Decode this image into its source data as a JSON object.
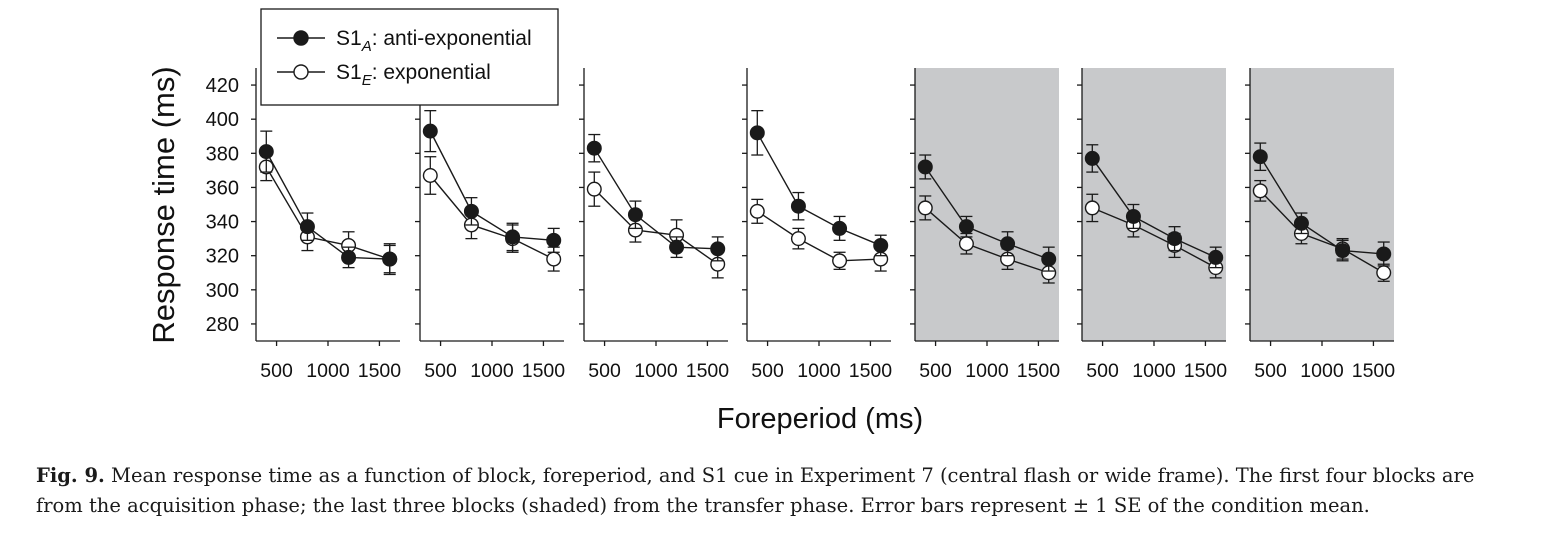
{
  "caption": {
    "label": "Fig. 9.",
    "text": "Mean response time as a function of block, foreperiod, and S1 cue in Experiment 7 (central flash or wide frame). The first four blocks are from the acquisition phase; the last three blocks (shaded) from the transfer phase. Error bars represent ± 1 SE of the condition mean."
  },
  "chart_data": {
    "type": "line",
    "xlabel": "Foreperiod (ms)",
    "ylabel": "Response time (ms)",
    "ylim": [
      270,
      430
    ],
    "y_ticks": [
      280,
      300,
      320,
      340,
      360,
      380,
      400,
      420
    ],
    "xlim": [
      300,
      1700
    ],
    "x_ticks": [
      500,
      1000,
      1500
    ],
    "x": [
      400,
      800,
      1200,
      1600
    ],
    "legend": {
      "placement": "top-left",
      "entries": [
        {
          "marker": "filled-circle",
          "label_main": "S1",
          "label_sub": "A",
          "label_rest": ": anti-exponential"
        },
        {
          "marker": "open-circle",
          "label_main": "S1",
          "label_sub": "E",
          "label_rest": ": exponential"
        }
      ]
    },
    "colors": {
      "shaded_panel": "#c8c9cb",
      "line": "#1a1a1a"
    },
    "panels": [
      {
        "phase": "acquisition",
        "shaded": false,
        "series": [
          {
            "marker": "filled",
            "values": [
              381,
              337,
              319,
              318
            ],
            "se": [
              12,
              8,
              6,
              8
            ]
          },
          {
            "marker": "open",
            "values": [
              372,
              331,
              326,
              318
            ],
            "se": [
              8,
              8,
              8,
              9
            ]
          }
        ]
      },
      {
        "phase": "acquisition",
        "shaded": false,
        "series": [
          {
            "marker": "filled",
            "values": [
              393,
              346,
              331,
              329
            ],
            "se": [
              12,
              8,
              8,
              7
            ]
          },
          {
            "marker": "open",
            "values": [
              367,
              338,
              330,
              318
            ],
            "se": [
              11,
              8,
              8,
              7
            ]
          }
        ]
      },
      {
        "phase": "acquisition",
        "shaded": false,
        "series": [
          {
            "marker": "filled",
            "values": [
              383,
              344,
              325,
              324
            ],
            "se": [
              8,
              8,
              6,
              7
            ]
          },
          {
            "marker": "open",
            "values": [
              359,
              335,
              332,
              315
            ],
            "se": [
              10,
              7,
              9,
              8
            ]
          }
        ]
      },
      {
        "phase": "acquisition",
        "shaded": false,
        "series": [
          {
            "marker": "filled",
            "values": [
              392,
              349,
              336,
              326
            ],
            "se": [
              13,
              8,
              7,
              6
            ]
          },
          {
            "marker": "open",
            "values": [
              346,
              330,
              317,
              318
            ],
            "se": [
              7,
              6,
              5,
              7
            ]
          }
        ]
      },
      {
        "phase": "transfer",
        "shaded": true,
        "series": [
          {
            "marker": "filled",
            "values": [
              372,
              337,
              327,
              318
            ],
            "se": [
              7,
              6,
              7,
              7
            ]
          },
          {
            "marker": "open",
            "values": [
              348,
              327,
              318,
              310
            ],
            "se": [
              7,
              6,
              6,
              6
            ]
          }
        ]
      },
      {
        "phase": "transfer",
        "shaded": true,
        "series": [
          {
            "marker": "filled",
            "values": [
              377,
              343,
              330,
              319
            ],
            "se": [
              8,
              7,
              7,
              6
            ]
          },
          {
            "marker": "open",
            "values": [
              348,
              338,
              326,
              313
            ],
            "se": [
              8,
              7,
              7,
              6
            ]
          }
        ]
      },
      {
        "phase": "transfer",
        "shaded": true,
        "series": [
          {
            "marker": "filled",
            "values": [
              378,
              339,
              323,
              321
            ],
            "se": [
              8,
              6,
              6,
              7
            ]
          },
          {
            "marker": "open",
            "values": [
              358,
              333,
              324,
              310
            ],
            "se": [
              6,
              6,
              6,
              5
            ]
          }
        ]
      }
    ]
  }
}
